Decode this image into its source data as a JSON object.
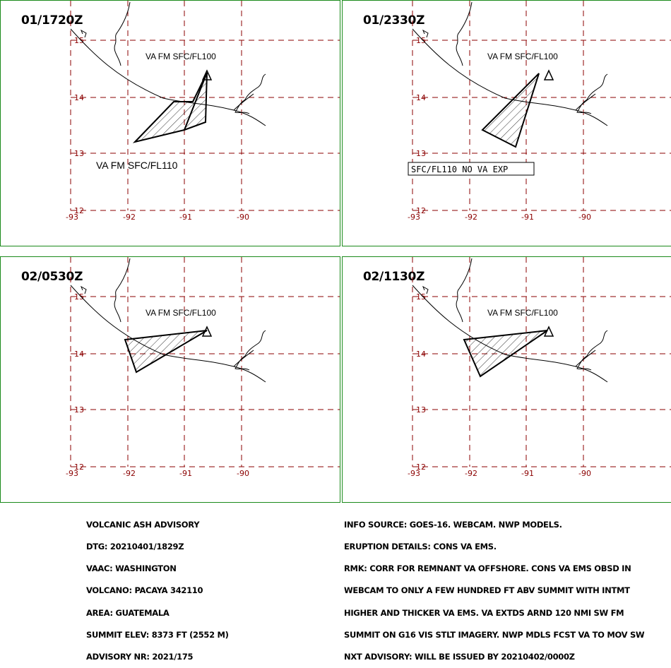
{
  "panels": [
    {
      "time": "01/1720Z",
      "ash_label": "VA FM SFC/FL100",
      "extra_label": "VA FM SFC/FL110",
      "extra_boxed": false
    },
    {
      "time": "01/2330Z",
      "ash_label": "VA FM SFC/FL100",
      "extra_label": "SFC/FL110  NO VA EXP",
      "extra_boxed": true
    },
    {
      "time": "02/0530Z",
      "ash_label": "VA FM SFC/FL100",
      "extra_label": "",
      "extra_boxed": false
    },
    {
      "time": "02/1130Z",
      "ash_label": "VA FM SFC/FL100",
      "extra_label": "",
      "extra_boxed": false
    }
  ],
  "lat_ticks": [
    "15",
    "14",
    "13",
    "12"
  ],
  "lon_ticks": [
    "-93",
    "-92",
    "-91",
    "-90"
  ],
  "colors": {
    "grid": "#8b0000",
    "border": "#1a8a1a",
    "coast": "#000000"
  },
  "advisory_left": [
    "VOLCANIC ASH ADVISORY",
    "DTG: 20210401/1829Z",
    "VAAC: WASHINGTON",
    "VOLCANO: PACAYA 342110",
    "AREA: GUATEMALA",
    "SUMMIT ELEV: 8373 FT (2552 M)",
    "ADVISORY NR: 2021/175"
  ],
  "advisory_right": [
    "INFO SOURCE: GOES-16. WEBCAM. NWP MODELS.",
    "ERUPTION DETAILS: CONS VA EMS.",
    "RMK: CORR FOR REMNANT VA OFFSHORE. CONS VA EMS OBSD IN",
    "WEBCAM TO ONLY A FEW HUNDRED FT ABV SUMMIT WITH INTMT",
    "HIGHER AND THICKER VA EMS. VA EXTDS ARND 120 NMI SW FM",
    "SUMMIT ON G16 VIS STLT IMAGERY. NWP MDLS FCST VA TO MOV SW",
    "NXT ADVISORY: WILL BE ISSUED BY 20210402/0000Z"
  ]
}
